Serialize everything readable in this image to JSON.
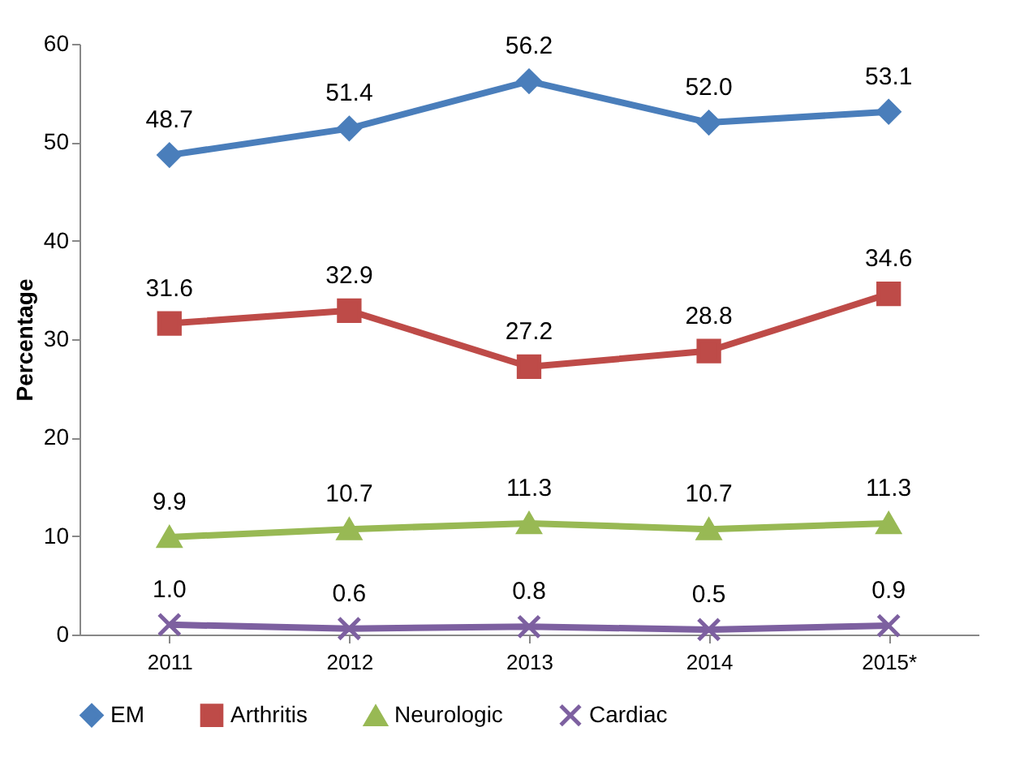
{
  "chart_data": {
    "type": "line",
    "ylabel": "Percentage",
    "categories": [
      "2011",
      "2012",
      "2013",
      "2014",
      "2015*"
    ],
    "ylim": [
      0,
      60
    ],
    "yticks": [
      0,
      10,
      20,
      30,
      40,
      50,
      60
    ],
    "grid": false,
    "legend": "bottom",
    "line_style": "solid",
    "series": [
      {
        "name": "EM",
        "color": "#4a7ebb",
        "marker": "diamond",
        "values": [
          48.7,
          51.4,
          56.2,
          52.0,
          53.1
        ],
        "value_labels": [
          "48.7",
          "51.4",
          "56.2",
          "52.0",
          "53.1"
        ]
      },
      {
        "name": "Arthritis",
        "color": "#be4b48",
        "marker": "square",
        "values": [
          31.6,
          32.9,
          27.2,
          28.8,
          34.6
        ],
        "value_labels": [
          "31.6",
          "32.9",
          "27.2",
          "28.8",
          "34.6"
        ]
      },
      {
        "name": "Neurologic",
        "color": "#98b954",
        "marker": "triangle",
        "values": [
          9.9,
          10.7,
          11.3,
          10.7,
          11.3
        ],
        "value_labels": [
          "9.9",
          "10.7",
          "11.3",
          "10.7",
          "11.3"
        ]
      },
      {
        "name": "Cardiac",
        "color": "#7d60a0",
        "marker": "cross",
        "values": [
          1.0,
          0.6,
          0.8,
          0.5,
          0.9
        ],
        "value_labels": [
          "1.0",
          "0.6",
          "0.8",
          "0.5",
          "0.9"
        ]
      }
    ]
  }
}
